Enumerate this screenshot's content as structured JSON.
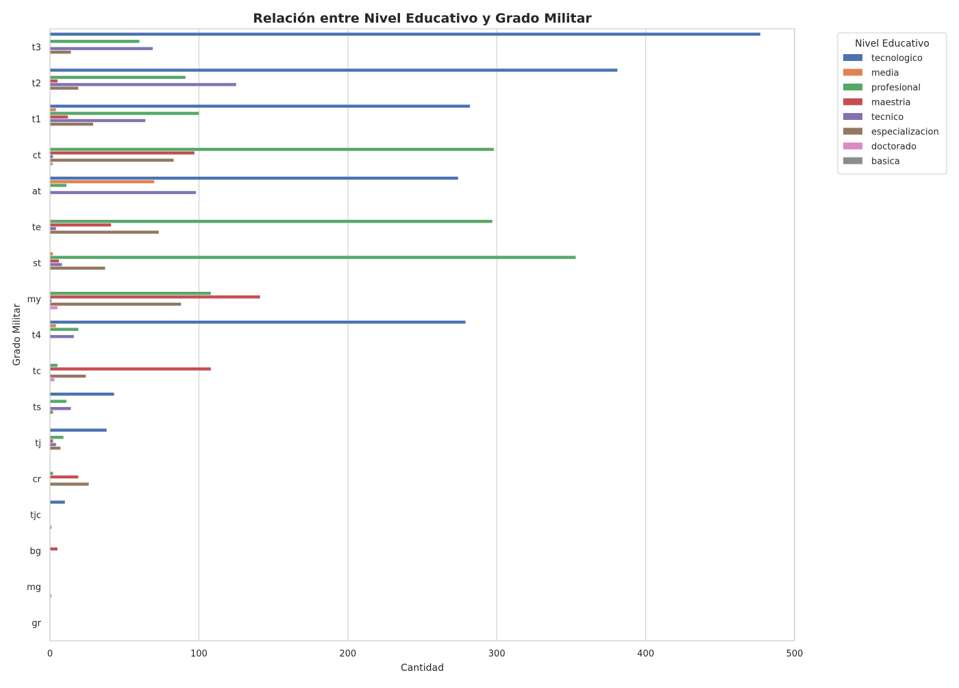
{
  "chart_data": {
    "type": "bar",
    "orientation": "horizontal",
    "title": "Relación entre Nivel Educativo y Grado Militar",
    "xlabel": "Cantidad",
    "ylabel": "Grado Militar",
    "xlim": [
      0,
      500
    ],
    "xticks": [
      "0",
      "100",
      "200",
      "300",
      "400",
      "500"
    ],
    "grid": "vertical",
    "legend": {
      "title": "Nivel Educativo",
      "placement": "outside top-right"
    },
    "categories": [
      "t3",
      "t2",
      "t1",
      "ct",
      "at",
      "te",
      "st",
      "my",
      "t4",
      "tc",
      "ts",
      "tj",
      "cr",
      "tjc",
      "bg",
      "mg",
      "gr"
    ],
    "series": [
      {
        "name": "tecnologico",
        "color": "#4c72b0",
        "values": [
          477,
          381,
          282,
          0,
          274,
          0,
          0,
          0,
          279,
          0,
          43,
          38,
          0,
          10,
          0,
          0,
          0
        ]
      },
      {
        "name": "media",
        "color": "#dd8452",
        "values": [
          0,
          0,
          4,
          0,
          70,
          0,
          2,
          0,
          4,
          0,
          0,
          0,
          0,
          0,
          0,
          0,
          0
        ]
      },
      {
        "name": "profesional",
        "color": "#55a868",
        "values": [
          60,
          91,
          100,
          298,
          11,
          297,
          353,
          108,
          19,
          5,
          11,
          9,
          2,
          0,
          0,
          0,
          0
        ]
      },
      {
        "name": "maestria",
        "color": "#c44e52",
        "values": [
          0,
          5,
          12,
          97,
          0,
          41,
          6,
          141,
          0,
          108,
          0,
          2,
          19,
          0,
          5,
          0,
          0
        ]
      },
      {
        "name": "tecnico",
        "color": "#8172b3",
        "values": [
          69,
          125,
          64,
          2,
          98,
          4,
          8,
          1,
          16,
          0,
          14,
          4,
          0,
          0,
          0,
          0,
          0
        ]
      },
      {
        "name": "especializacion",
        "color": "#937860",
        "values": [
          14,
          19,
          29,
          83,
          0,
          73,
          37,
          88,
          0,
          24,
          2,
          7,
          26,
          0,
          0,
          0,
          0
        ]
      },
      {
        "name": "doctorado",
        "color": "#da8bc3",
        "values": [
          0,
          0,
          0,
          2,
          0,
          0,
          0,
          5,
          0,
          3,
          0,
          0,
          0,
          0,
          0,
          1,
          0
        ]
      },
      {
        "name": "basica",
        "color": "#8c8c8c",
        "values": [
          0,
          0,
          0,
          0,
          0,
          0,
          0,
          0,
          0,
          0,
          0,
          0,
          0,
          1,
          0,
          0,
          0
        ]
      }
    ]
  }
}
